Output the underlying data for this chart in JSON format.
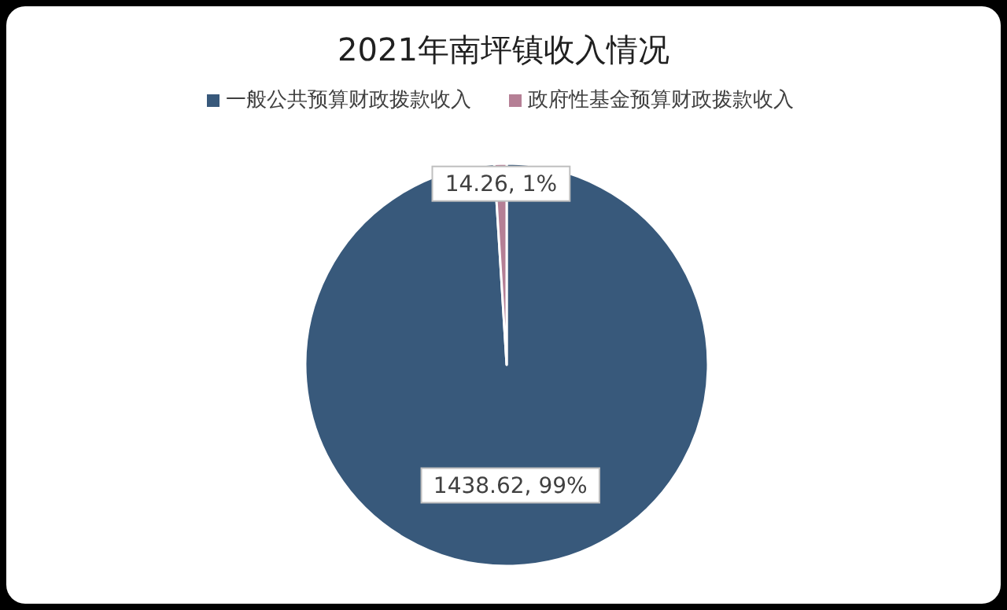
{
  "chart_data": {
    "type": "pie",
    "title": "2021年南坪镇收入情况",
    "categories": [
      "一般公共预算财政拨款收入",
      "政府性基金预算财政拨款收入"
    ],
    "values": [
      1438.62,
      14.26
    ],
    "value_labels": [
      "1438.62, 99%",
      "14.26, 1%"
    ],
    "colors": [
      "#38597b",
      "#b57f95"
    ],
    "legend": "top"
  }
}
